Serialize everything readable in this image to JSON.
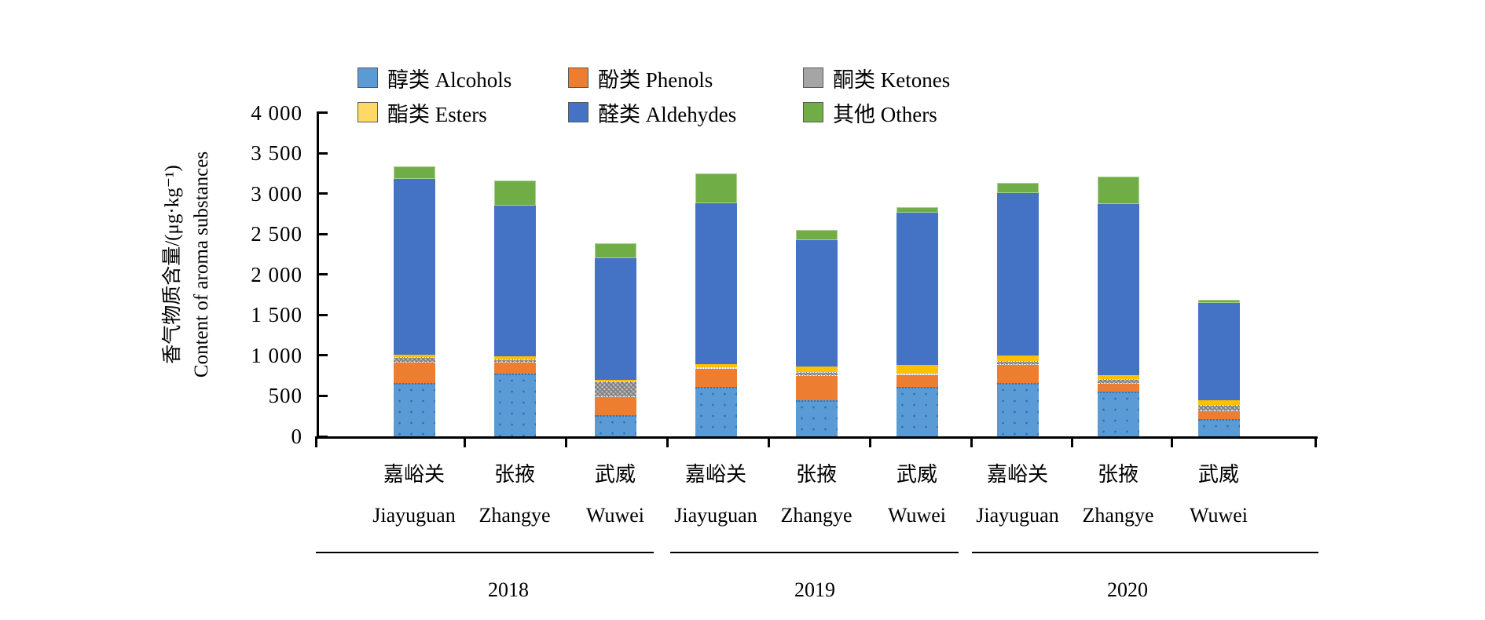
{
  "chart_data": {
    "type": "bar",
    "stacked": true,
    "unit": "μg·kg⁻¹",
    "ylabel": {
      "zh": "香气物质含量/(μg·kg⁻¹)",
      "en": "Content of aroma substances"
    },
    "ylim": [
      0,
      4000
    ],
    "ytick_step": 500,
    "ytick_labels": [
      "4 000",
      "3 500",
      "3 000",
      "2 500",
      "2 000",
      "1 500",
      "1 000",
      "500",
      "0"
    ],
    "grid": false,
    "legend_position": "top",
    "categories": [
      {
        "zh": "嘉峪关",
        "en": "Jiayuguan",
        "year": "2018"
      },
      {
        "zh": "张掖",
        "en": "Zhangye",
        "year": "2018"
      },
      {
        "zh": "武威",
        "en": "Wuwei",
        "year": "2018"
      },
      {
        "zh": "嘉峪关",
        "en": "Jiayuguan",
        "year": "2019"
      },
      {
        "zh": "张掖",
        "en": "Zhangye",
        "year": "2019"
      },
      {
        "zh": "武威",
        "en": "Wuwei",
        "year": "2019"
      },
      {
        "zh": "嘉峪关",
        "en": "Jiayuguan",
        "year": "2020"
      },
      {
        "zh": "张掖",
        "en": "Zhangye",
        "year": "2020"
      },
      {
        "zh": "武威",
        "en": "Wuwei",
        "year": "2020"
      }
    ],
    "groups": [
      {
        "label": "2018",
        "bars": [
          0,
          1,
          2
        ]
      },
      {
        "label": "2019",
        "bars": [
          3,
          4,
          5
        ]
      },
      {
        "label": "2020",
        "bars": [
          6,
          7,
          8
        ]
      }
    ],
    "series": [
      {
        "id": "alcohols",
        "label_zh": "醇类",
        "label_en": "Alcohols",
        "color": "#5B9BD5",
        "legend_color": "#5B9BD5",
        "values": [
          660,
          780,
          265,
          615,
          450,
          615,
          655,
          550,
          215
        ]
      },
      {
        "id": "phenols",
        "label_zh": "酚类",
        "label_en": "Phenols",
        "color": "#ED7D31",
        "legend_color": "#ED7D31",
        "values": [
          250,
          130,
          220,
          215,
          300,
          150,
          225,
          100,
          95
        ]
      },
      {
        "id": "ketones",
        "label_zh": "酮类",
        "label_en": "Ketones",
        "color": "#A5A5A5",
        "legend_color": "#A5A5A5",
        "values": [
          70,
          45,
          195,
          20,
          45,
          15,
          55,
          60,
          75
        ]
      },
      {
        "id": "esters",
        "label_zh": "酯类",
        "label_en": "Esters",
        "color": "#FFC000",
        "legend_color": "#FFD966",
        "values": [
          30,
          30,
          20,
          45,
          65,
          100,
          60,
          50,
          65
        ]
      },
      {
        "id": "aldehydes",
        "label_zh": "醛类",
        "label_en": "Aldehydes",
        "color": "#4472C4",
        "legend_color": "#4472C4",
        "values": [
          2170,
          1865,
          1505,
          1985,
          1565,
          1885,
          2010,
          2115,
          1195
        ]
      },
      {
        "id": "others",
        "label_zh": "其他",
        "label_en": "Others",
        "color": "#70AD47",
        "legend_color": "#70AD47",
        "values": [
          160,
          315,
          180,
          370,
          125,
          70,
          130,
          335,
          45
        ]
      }
    ],
    "bar_totals": [
      3340,
      3165,
      2385,
      3250,
      2550,
      2835,
      3135,
      3210,
      1690
    ]
  }
}
